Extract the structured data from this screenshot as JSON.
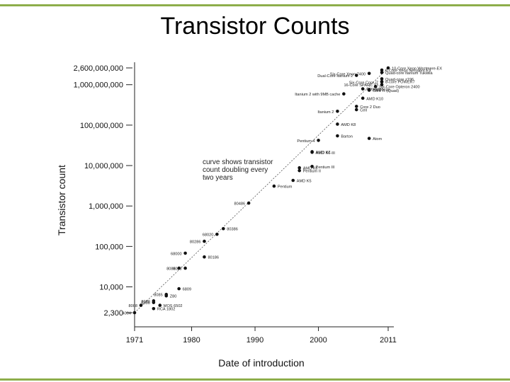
{
  "slide": {
    "title": "Transistor Counts",
    "accent_color": "#8dae4b"
  },
  "chart_data": {
    "type": "scatter",
    "title": "Transistor Counts",
    "xlabel": "Date of introduction",
    "ylabel": "Transistor count",
    "x_scale": "linear",
    "y_scale": "log",
    "xlim": [
      1971,
      2011
    ],
    "ylim": [
      2300,
      2600000000
    ],
    "x_ticks": [
      1971,
      1980,
      1990,
      2000,
      2011
    ],
    "y_ticks": [
      {
        "value": 2300,
        "label": "2,300"
      },
      {
        "value": 10000,
        "label": "10,000"
      },
      {
        "value": 100000,
        "label": "100,000"
      },
      {
        "value": 1000000,
        "label": "1,000,000"
      },
      {
        "value": 10000000,
        "label": "10,000,000"
      },
      {
        "value": 100000000,
        "label": "100,000,000"
      },
      {
        "value": 1000000000,
        "label": "1,000,000,000"
      },
      {
        "value": 2600000000,
        "label": "2,600,000,000"
      }
    ],
    "grid": false,
    "trend_line": {
      "from": {
        "x": 1971,
        "y": 2300
      },
      "to": {
        "x": 2011,
        "y": 2600000000
      }
    },
    "annotation": "curve shows transistor count doubling every two years",
    "points": [
      {
        "label": "4004",
        "x": 1971,
        "y": 2300
      },
      {
        "label": "8008",
        "x": 1972,
        "y": 3500
      },
      {
        "label": "RCA 1802",
        "x": 1974,
        "y": 2900
      },
      {
        "label": "8080",
        "x": 1974,
        "y": 4500
      },
      {
        "label": "MOS 6502",
        "x": 1975,
        "y": 3500
      },
      {
        "label": "6800",
        "x": 1974,
        "y": 4100
      },
      {
        "label": "Z80",
        "x": 1976,
        "y": 6000
      },
      {
        "label": "8085",
        "x": 1976,
        "y": 6500
      },
      {
        "label": "6809",
        "x": 1978,
        "y": 9000
      },
      {
        "label": "8086",
        "x": 1978,
        "y": 29000
      },
      {
        "label": "8088",
        "x": 1979,
        "y": 29000
      },
      {
        "label": "68000",
        "x": 1979,
        "y": 68000
      },
      {
        "label": "80186",
        "x": 1982,
        "y": 55000
      },
      {
        "label": "80286",
        "x": 1982,
        "y": 134000
      },
      {
        "label": "68020",
        "x": 1984,
        "y": 200000
      },
      {
        "label": "80386",
        "x": 1985,
        "y": 275000
      },
      {
        "label": "80486",
        "x": 1989,
        "y": 1180000
      },
      {
        "label": "Pentium",
        "x": 1993,
        "y": 3100000
      },
      {
        "label": "AMD K5",
        "x": 1996,
        "y": 4300000
      },
      {
        "label": "Pentium II",
        "x": 1997,
        "y": 7500000
      },
      {
        "label": "Pentium III",
        "x": 1999,
        "y": 9500000
      },
      {
        "label": "AMD K6",
        "x": 1997,
        "y": 8800000
      },
      {
        "label": "AMD K6-III",
        "x": 1999,
        "y": 21300000
      },
      {
        "label": "AMD K7",
        "x": 1999,
        "y": 22000000
      },
      {
        "label": "Pentium 4",
        "x": 2000,
        "y": 42000000
      },
      {
        "label": "Barton",
        "x": 2003,
        "y": 54300000
      },
      {
        "label": "Atom",
        "x": 2008,
        "y": 47000000
      },
      {
        "label": "AMD K8",
        "x": 2003,
        "y": 105900000
      },
      {
        "label": "Itanium 2",
        "x": 2003,
        "y": 220000000
      },
      {
        "label": "Cell",
        "x": 2006,
        "y": 241000000
      },
      {
        "label": "Core 2 Duo",
        "x": 2006,
        "y": 291000000
      },
      {
        "label": "AMD K10",
        "x": 2007,
        "y": 463000000
      },
      {
        "label": "Itanium 2 with 9MB cache",
        "x": 2004,
        "y": 592000000
      },
      {
        "label": "POWER6",
        "x": 2007,
        "y": 789000000
      },
      {
        "label": "Core i7 (Quad)",
        "x": 2008,
        "y": 731000000
      },
      {
        "label": "AMD K10",
        "x": 2008,
        "y": 758000000
      },
      {
        "label": "Six-Core Opteron 2400",
        "x": 2009,
        "y": 904000000
      },
      {
        "label": "Dual-Core Itanium 2",
        "x": 2006,
        "y": 1700000000
      },
      {
        "label": "Six-Core Xeon 7400",
        "x": 2008,
        "y": 1900000000
      },
      {
        "label": "8-Core Xeon Nehalem-EX",
        "x": 2010,
        "y": 2300000000
      },
      {
        "label": "Quad-core Itanium Tukwila",
        "x": 2010,
        "y": 2000000000
      },
      {
        "label": "Quad-core z196",
        "x": 2010,
        "y": 1400000000
      },
      {
        "label": "8-core POWER7",
        "x": 2010,
        "y": 1200000000
      },
      {
        "label": "10-Core Xeon Westmere-EX",
        "x": 2011,
        "y": 2600000000
      },
      {
        "label": "Six-Core Core i7",
        "x": 2010,
        "y": 1170000000
      },
      {
        "label": "16-Core SPARC T3",
        "x": 2010,
        "y": 1000000000
      }
    ],
    "visible_point_labels": [
      "4004",
      "8008",
      "RCA 1802",
      "8080",
      "MOS 6502",
      "6800",
      "Z80",
      "8085",
      "6809",
      "8086",
      "8088",
      "68000",
      "80186",
      "80286",
      "68020",
      "80386",
      "80486",
      "Pentium",
      "AMD K5",
      "Pentium II",
      "Pentium III",
      "AMD K6",
      "AMD K6-III",
      "AMD K7",
      "Pentium 4",
      "Barton",
      "Atom",
      "AMD K8",
      "Itanium 2",
      "Cell",
      "Core 2 Duo",
      "AMD K10",
      "Itanium 2 with 9MB cache",
      "POWER6",
      "Core i7 (Quad)",
      "AMD K10",
      "Six-Core Opteron 2400",
      "Dual-Core Itanium 2",
      "Six-Core Xeon 7400",
      "8-Core Xeon Nehalem-EX",
      "Quad-core Itanium Tukwila",
      "Quad-core z196",
      "8-core POWER7",
      "10-Core Xeon Westmere-EX",
      "Six-Core Core i7",
      "16-Core SPARC T3"
    ]
  }
}
